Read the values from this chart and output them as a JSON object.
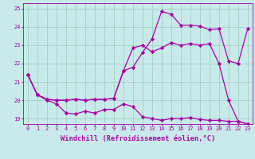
{
  "bg_color": "#c8eaea",
  "line_color": "#aa00aa",
  "xlim": [
    -0.5,
    23.5
  ],
  "ylim": [
    18.7,
    25.3
  ],
  "yticks": [
    19,
    20,
    21,
    22,
    23,
    24,
    25
  ],
  "xticks": [
    0,
    1,
    2,
    3,
    4,
    5,
    6,
    7,
    8,
    9,
    10,
    11,
    12,
    13,
    14,
    15,
    16,
    17,
    18,
    19,
    20,
    21,
    22,
    23
  ],
  "line1_x": [
    0,
    1,
    2,
    3,
    4,
    5,
    6,
    7,
    8,
    9,
    10,
    11,
    12,
    13,
    14,
    15,
    16,
    17,
    18,
    19,
    20,
    21,
    22,
    23
  ],
  "line1_y": [
    21.4,
    20.3,
    20.0,
    19.8,
    19.3,
    19.25,
    19.4,
    19.3,
    19.5,
    19.5,
    19.8,
    19.65,
    19.1,
    19.0,
    18.9,
    19.0,
    19.0,
    19.05,
    18.95,
    18.9,
    18.9,
    18.85,
    18.85,
    18.7
  ],
  "line2_x": [
    0,
    1,
    2,
    3,
    4,
    5,
    6,
    7,
    8,
    9,
    10,
    11,
    12,
    13,
    14,
    15,
    16,
    17,
    18,
    19,
    20,
    21,
    22,
    23
  ],
  "line2_y": [
    21.4,
    20.3,
    20.05,
    20.0,
    20.0,
    20.05,
    20.0,
    20.05,
    20.05,
    20.1,
    21.6,
    21.8,
    22.6,
    23.35,
    24.85,
    24.7,
    24.1,
    24.1,
    24.05,
    23.85,
    23.9,
    22.15,
    22.0,
    23.9
  ],
  "line3_x": [
    0,
    1,
    2,
    3,
    4,
    5,
    6,
    7,
    8,
    9,
    10,
    11,
    12,
    13,
    14,
    15,
    16,
    17,
    18,
    19,
    20,
    21,
    22,
    23
  ],
  "line3_y": [
    21.4,
    20.3,
    20.05,
    20.0,
    20.0,
    20.05,
    20.0,
    20.05,
    20.05,
    20.1,
    21.6,
    22.85,
    23.0,
    22.65,
    22.85,
    23.15,
    23.0,
    23.1,
    23.0,
    23.1,
    22.0,
    20.0,
    18.85,
    18.7
  ],
  "grid_color": "#99ccbb",
  "marker": "D",
  "markersize": 2.2,
  "linewidth": 0.9,
  "tick_fontsize": 5.0,
  "xlabel": "Windchill (Refroidissement éolien,°C)",
  "xlabel_fontsize": 6.2
}
